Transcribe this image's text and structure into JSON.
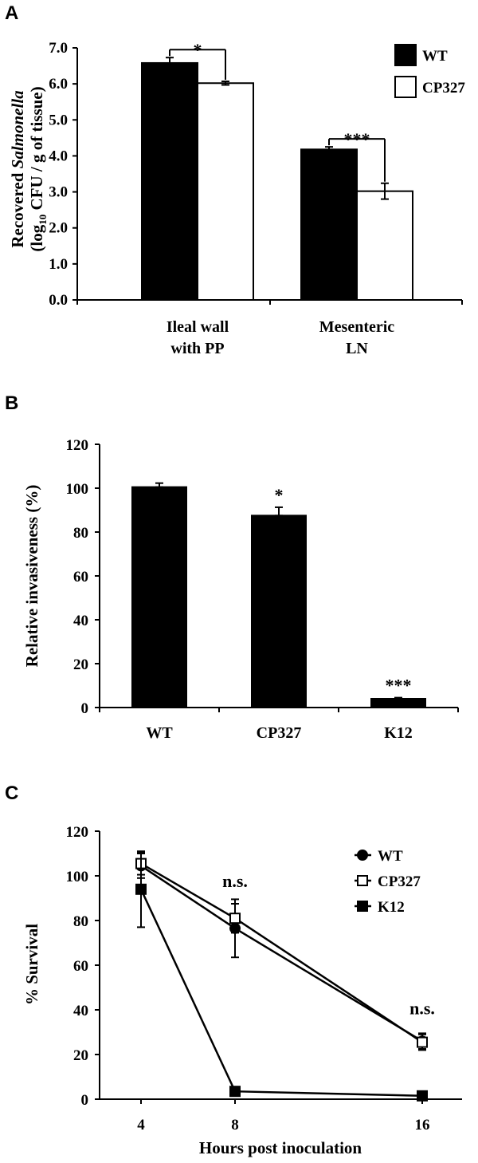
{
  "chart_data": [
    {
      "panel": "A",
      "type": "bar",
      "ylabel_line1_prefix": "Recovered ",
      "ylabel_line1_italic": "Salmonella",
      "ylabel_line2_a": "(log",
      "ylabel_line2_sub": "10",
      "ylabel_line2_b": " CFU / g of tissue)",
      "ylim": [
        0,
        7
      ],
      "yticks": [
        "0.0",
        "1.0",
        "2.0",
        "3.0",
        "4.0",
        "5.0",
        "6.0",
        "7.0"
      ],
      "categories": [
        [
          "Ileal wall",
          "with PP"
        ],
        [
          "Mesenteric",
          "LN"
        ]
      ],
      "series": [
        {
          "name": "WT",
          "values": [
            6.58,
            4.18
          ],
          "errors": [
            0.15,
            0.07
          ],
          "color": "#000000",
          "fill": "#000000"
        },
        {
          "name": "CP327",
          "values": [
            6.02,
            3.02
          ],
          "errors": [
            0.05,
            0.22
          ],
          "color": "#000000",
          "fill": "#ffffff"
        }
      ],
      "significance": [
        "*",
        "***"
      ],
      "legend_position": "top-right"
    },
    {
      "panel": "B",
      "type": "bar",
      "ylabel": "Relative invasiveness (%)",
      "ylim": [
        0,
        120
      ],
      "yticks": [
        "0",
        "20",
        "40",
        "60",
        "80",
        "100",
        "120"
      ],
      "categories": [
        "WT",
        "CP327",
        "K12"
      ],
      "values": [
        100.5,
        87.5,
        4.0
      ],
      "errors": [
        1.8,
        3.8,
        0.5
      ],
      "significance": [
        "",
        "*",
        "***"
      ],
      "color": "#000000"
    },
    {
      "panel": "C",
      "type": "line",
      "ylabel": "% Survival",
      "xlabel": "Hours post inoculation",
      "ylim": [
        0,
        120
      ],
      "yticks": [
        "0",
        "20",
        "40",
        "60",
        "80",
        "100",
        "120"
      ],
      "x": [
        "4",
        "8",
        "16"
      ],
      "series": [
        {
          "name": "WT",
          "marker": "circle",
          "values": [
            104.5,
            76.5,
            26.0
          ],
          "errors": [
            5.5,
            13.0,
            3.5
          ]
        },
        {
          "name": "CP327",
          "marker": "open-square",
          "values": [
            105.5,
            81.0,
            25.5
          ],
          "errors": [
            5.0,
            6.5,
            3.5
          ]
        },
        {
          "name": "K12",
          "marker": "filled-square",
          "values": [
            94.0,
            3.5,
            1.5
          ],
          "errors": [
            17.0,
            0.5,
            0.5
          ]
        }
      ],
      "annotations": [
        "n.s.",
        "n.s."
      ],
      "legend_position": "top-right"
    }
  ],
  "panel_labels": [
    "A",
    "B",
    "C"
  ]
}
